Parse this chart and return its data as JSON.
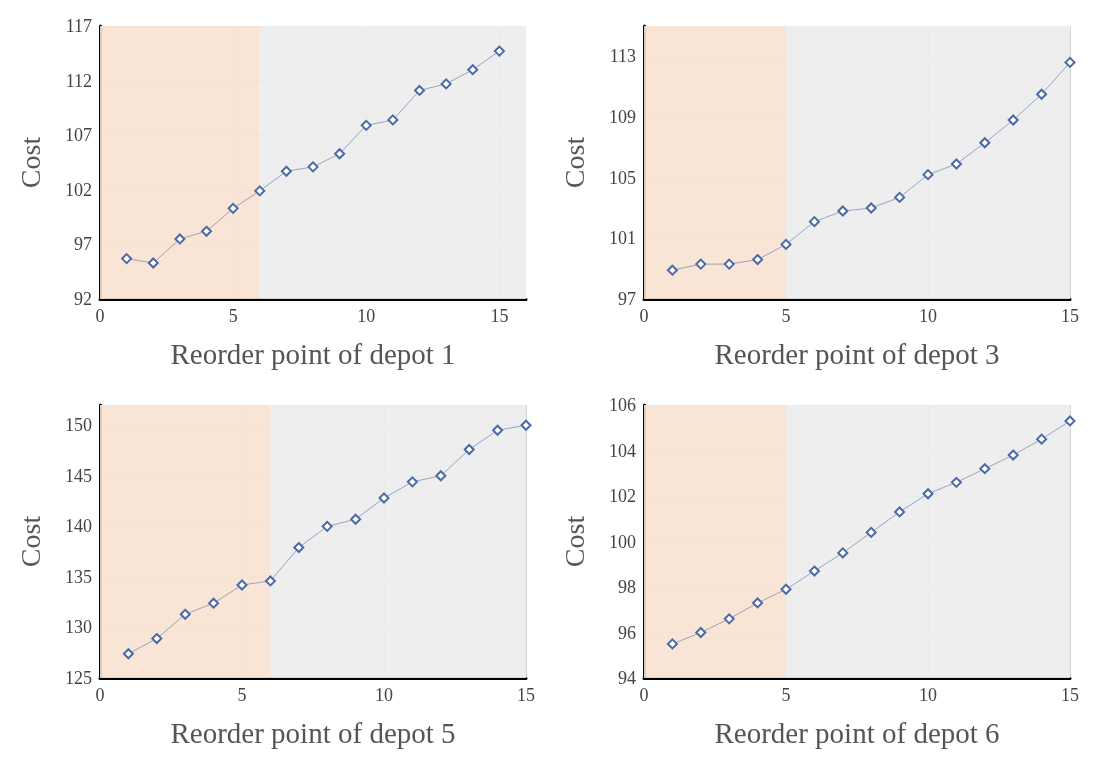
{
  "chart_data": [
    {
      "type": "line",
      "xlabel": "Reorder point of depot 1",
      "ylabel": "Cost",
      "x": [
        1,
        2,
        3,
        4,
        5,
        6,
        7,
        8,
        9,
        10,
        11,
        12,
        13,
        14,
        15
      ],
      "series": [
        {
          "color": "#4a6aa5",
          "values": [
            95.7,
            95.3,
            97.5,
            98.2,
            100.3,
            101.9,
            103.7,
            104.1,
            105.3,
            107.9,
            108.4,
            111.1,
            111.7,
            113.0,
            114.7
          ]
        }
      ],
      "xlim": [
        0,
        16
      ],
      "xticks": [
        0,
        5,
        10,
        15
      ],
      "ylim": [
        92,
        117
      ],
      "yticks": [
        92,
        97,
        102,
        107,
        112,
        117
      ],
      "grid": true,
      "marker": "diamond",
      "line_style": "solid",
      "bands": [
        {
          "axis": "x",
          "from": 0,
          "to": 6,
          "color": "#f8e2d2"
        },
        {
          "axis": "x",
          "from": 6,
          "to": 16,
          "color": "#ececec"
        }
      ]
    },
    {
      "type": "line",
      "xlabel": "Reorder point of depot 3",
      "ylabel": "Cost",
      "x": [
        1,
        2,
        3,
        4,
        5,
        6,
        7,
        8,
        9,
        10,
        11,
        12,
        13,
        14,
        15
      ],
      "series": [
        {
          "color": "#4a6aa5",
          "values": [
            98.9,
            99.3,
            99.3,
            99.6,
            100.6,
            102.1,
            102.8,
            103.0,
            103.7,
            105.2,
            105.9,
            107.3,
            108.8,
            110.5,
            112.6
          ]
        }
      ],
      "xlim": [
        0,
        15
      ],
      "xticks": [
        0,
        5,
        10,
        15
      ],
      "ylim": [
        97,
        115
      ],
      "yticks": [
        97,
        101,
        105,
        109,
        113
      ],
      "grid": true,
      "marker": "diamond",
      "line_style": "solid",
      "bands": [
        {
          "axis": "x",
          "from": 0,
          "to": 5,
          "color": "#f8e2d2"
        },
        {
          "axis": "x",
          "from": 5,
          "to": 15,
          "color": "#ececec"
        }
      ]
    },
    {
      "type": "line",
      "xlabel": "Reorder point of depot 5",
      "ylabel": "Cost",
      "x": [
        1,
        2,
        3,
        4,
        5,
        6,
        7,
        8,
        9,
        10,
        11,
        12,
        13,
        14,
        15
      ],
      "series": [
        {
          "color": "#4a6aa5",
          "values": [
            127.4,
            128.9,
            131.3,
            132.4,
            134.2,
            134.6,
            137.9,
            140.0,
            140.7,
            142.8,
            144.4,
            145.0,
            147.6,
            149.5,
            150.0
          ]
        }
      ],
      "xlim": [
        0,
        15
      ],
      "xticks": [
        0,
        5,
        10,
        15
      ],
      "ylim": [
        125,
        152
      ],
      "yticks": [
        125,
        130,
        135,
        140,
        145,
        150
      ],
      "grid": true,
      "marker": "diamond",
      "line_style": "solid",
      "bands": [
        {
          "axis": "x",
          "from": 0,
          "to": 6,
          "color": "#f8e2d2"
        },
        {
          "axis": "x",
          "from": 6,
          "to": 15,
          "color": "#ececec"
        }
      ]
    },
    {
      "type": "line",
      "xlabel": "Reorder point of depot 6",
      "ylabel": "Cost",
      "x": [
        1,
        2,
        3,
        4,
        5,
        6,
        7,
        8,
        9,
        10,
        11,
        12,
        13,
        14,
        15
      ],
      "series": [
        {
          "color": "#4a6aa5",
          "values": [
            95.5,
            96.0,
            96.6,
            97.3,
            97.9,
            98.7,
            99.5,
            100.4,
            101.3,
            102.1,
            102.6,
            103.2,
            103.8,
            104.5,
            105.3
          ]
        }
      ],
      "xlim": [
        0,
        15
      ],
      "xticks": [
        0,
        5,
        10,
        15
      ],
      "ylim": [
        94,
        106
      ],
      "yticks": [
        94,
        96,
        98,
        100,
        102,
        104,
        106
      ],
      "grid": true,
      "marker": "diamond",
      "line_style": "solid",
      "bands": [
        {
          "axis": "x",
          "from": 0,
          "to": 5,
          "color": "#f8e2d2"
        },
        {
          "axis": "x",
          "from": 5,
          "to": 15,
          "color": "#ececec"
        }
      ]
    }
  ]
}
